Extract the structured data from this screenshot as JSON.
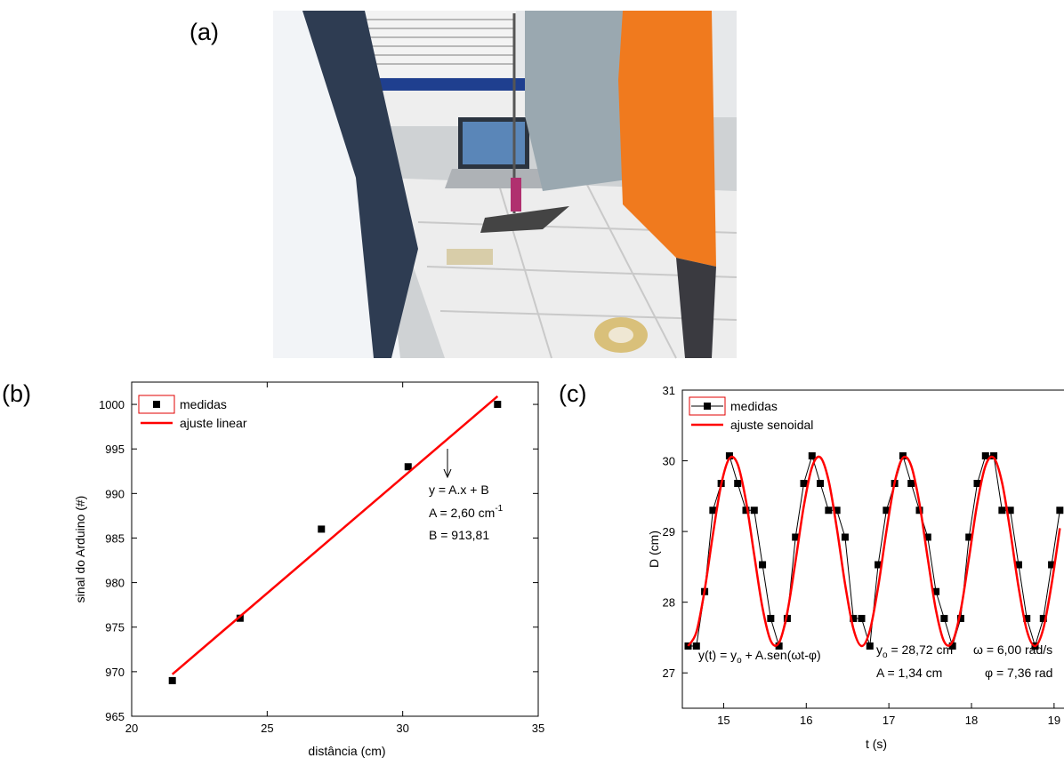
{
  "panel_labels": [
    "(a)",
    "(b)",
    "(c)"
  ],
  "chart_data": [
    {
      "type": "scatter",
      "xlabel": "distância (cm)",
      "ylabel": "sinal do Arduino (#)",
      "xlim": [
        20,
        35
      ],
      "xticks": [
        20,
        25,
        30,
        35
      ],
      "ylim": [
        965,
        1002.5
      ],
      "yticks": [
        965,
        970,
        975,
        980,
        985,
        990,
        995,
        1000
      ],
      "legend": "upper left",
      "series": [
        {
          "name": "medidas",
          "color": "#000000",
          "style": "markers",
          "x": [
            21.5,
            24,
            27,
            30.2,
            33.5
          ],
          "values": [
            969,
            976,
            986,
            993,
            1000
          ]
        },
        {
          "name": "ajuste linear",
          "color": "#ff0000",
          "style": "line",
          "x": [
            21.5,
            33.5
          ],
          "values": [
            969.71,
            1000.91
          ]
        }
      ],
      "annotations": [
        {
          "text": "y = A.x + B"
        },
        {
          "text": "A = 2,60 cm",
          "sup": "-1"
        },
        {
          "text": "B = 913,81"
        }
      ]
    },
    {
      "type": "line",
      "xlabel": "t (s)",
      "ylabel": "D (cm)",
      "xlim": [
        14.5,
        19.12
      ],
      "xticks": [
        15,
        16,
        17,
        18,
        19
      ],
      "ylim": [
        26.5,
        31
      ],
      "yticks": [
        27,
        28,
        29,
        30,
        31
      ],
      "legend": "upper left",
      "x": [
        14.57,
        14.67,
        14.77,
        14.87,
        14.97,
        15.07,
        15.17,
        15.27,
        15.37,
        15.47,
        15.57,
        15.67,
        15.77,
        15.87,
        15.97,
        16.07,
        16.17,
        16.27,
        16.37,
        16.47,
        16.57,
        16.67,
        16.77,
        16.87,
        16.97,
        17.07,
        17.17,
        17.27,
        17.37,
        17.47,
        17.57,
        17.67,
        17.77,
        17.87,
        17.97,
        18.07,
        18.17,
        18.27,
        18.37,
        18.47,
        18.57,
        18.67,
        18.77,
        18.87,
        18.97,
        19.07
      ],
      "series": [
        {
          "name": "medidas",
          "color": "#000000",
          "style": "line+markers",
          "values": [
            27.38,
            27.38,
            28.15,
            29.3,
            29.68,
            30.07,
            29.68,
            29.3,
            29.3,
            28.53,
            27.77,
            27.38,
            27.77,
            28.92,
            29.68,
            30.07,
            29.68,
            29.3,
            29.3,
            28.92,
            27.77,
            27.77,
            27.38,
            28.53,
            29.3,
            29.68,
            30.07,
            29.68,
            29.3,
            28.92,
            28.15,
            27.77,
            27.38,
            27.77,
            28.92,
            29.68,
            30.07,
            30.07,
            29.3,
            29.3,
            28.53,
            27.77,
            27.38,
            27.77,
            28.53,
            29.3
          ]
        },
        {
          "name": "ajuste senoidal",
          "color": "#ff0000",
          "style": "smooth",
          "values": [
            27.382,
            27.577,
            28.172,
            28.958,
            29.661,
            30.035,
            29.95,
            29.435,
            28.67,
            27.923,
            27.454,
            27.427,
            27.852,
            28.58,
            29.357,
            29.912,
            30.049,
            29.723,
            29.046,
            28.255,
            27.627,
            27.38,
            27.601,
            28.213,
            29.002,
            29.693,
            30.043,
            29.931,
            29.397,
            28.625,
            27.887,
            27.44,
            27.44,
            27.887,
            28.625,
            29.397,
            29.931,
            30.043,
            29.693,
            29.002,
            28.213,
            27.601,
            27.38,
            27.627,
            28.255,
            29.046
          ]
        }
      ],
      "annotations": [
        {
          "text": "y(t) = y",
          "sub": "o",
          "rest": " + A.sen(ωt-φ)"
        },
        {
          "text": "y",
          "sub": "o",
          "rest": " = 28,72 cm"
        },
        {
          "text": "A = 1,34 cm"
        },
        {
          "text": "ω = 6,00 rad/s"
        },
        {
          "text": "φ = 7,36 rad"
        }
      ]
    }
  ]
}
